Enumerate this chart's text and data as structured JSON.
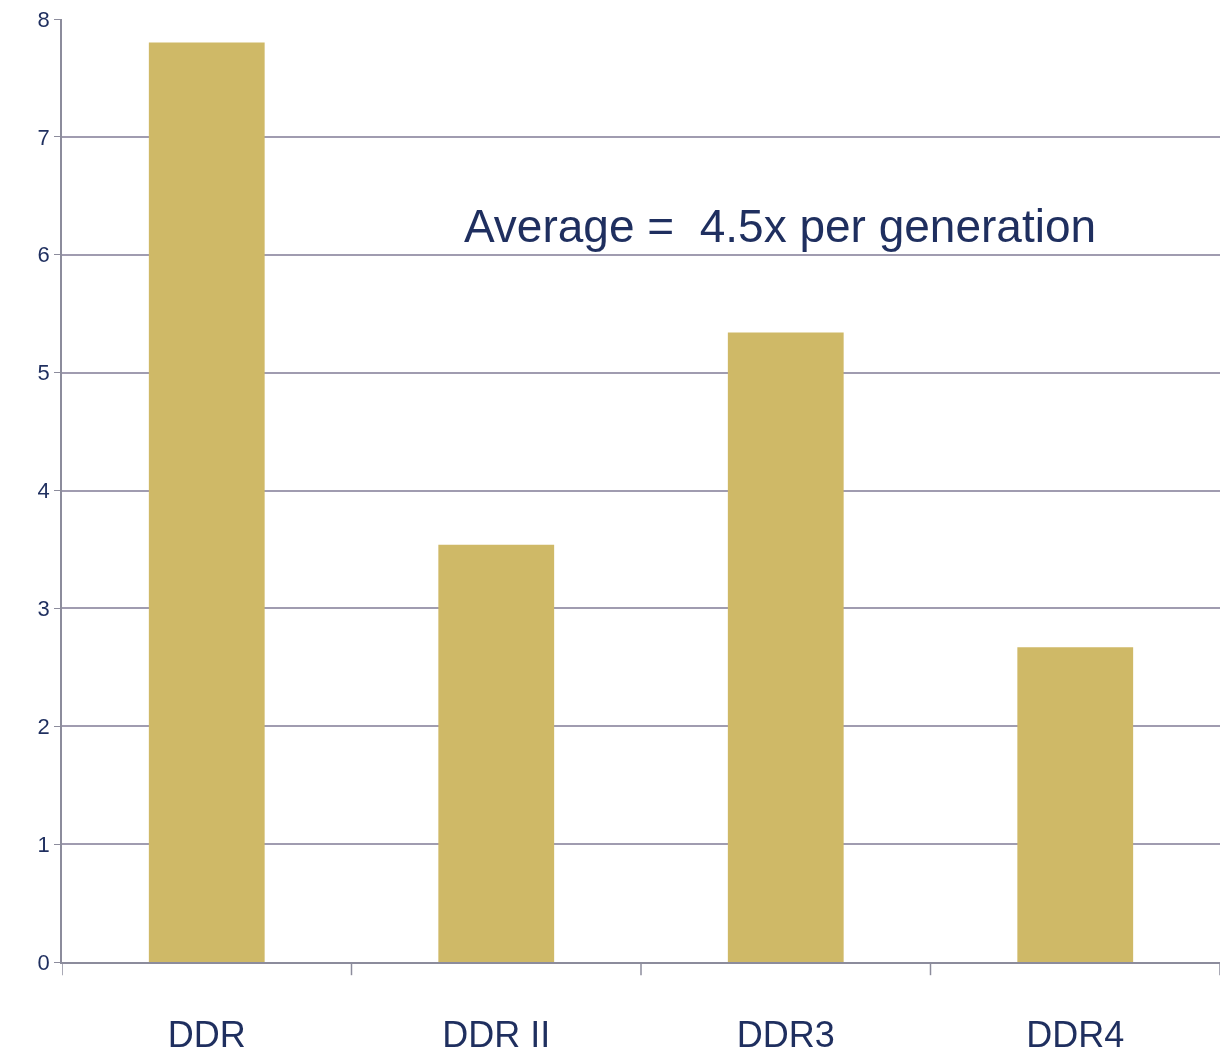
{
  "chart_data": {
    "type": "bar",
    "categories": [
      "DDR",
      "DDR II",
      "DDR3",
      "DDR4"
    ],
    "values": [
      7.8,
      3.54,
      5.34,
      2.67
    ],
    "color": "#cfb967",
    "ylim": [
      0,
      8
    ],
    "yticks": [
      0,
      1,
      2,
      3,
      4,
      5,
      6,
      7,
      8
    ],
    "grid": "y",
    "annotations": [
      "Average =  4.5x per generation"
    ]
  }
}
